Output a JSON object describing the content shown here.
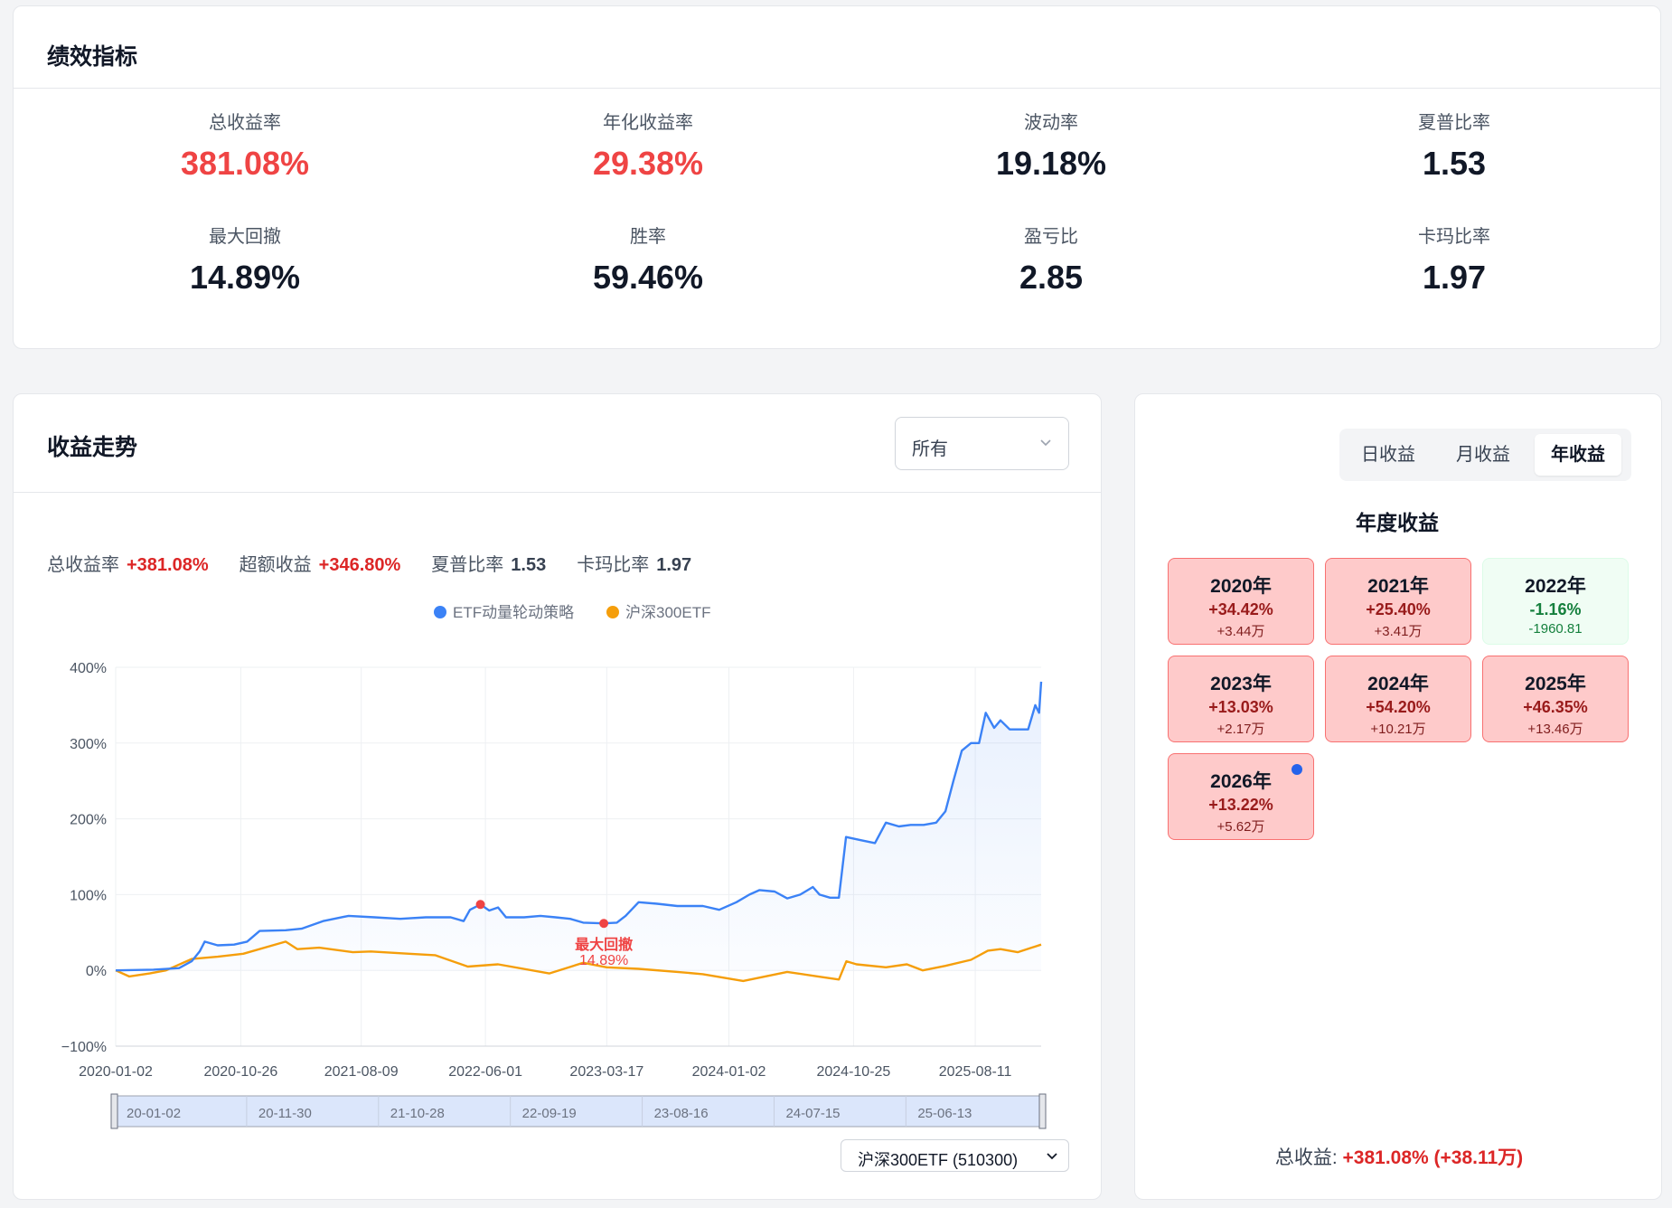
{
  "performance": {
    "title": "绩效指标",
    "metrics": [
      {
        "label": "总收益率",
        "value": "381.08%",
        "highlight": true
      },
      {
        "label": "年化收益率",
        "value": "29.38%",
        "highlight": true
      },
      {
        "label": "波动率",
        "value": "19.18%",
        "highlight": false
      },
      {
        "label": "夏普比率",
        "value": "1.53",
        "highlight": false
      },
      {
        "label": "最大回撤",
        "value": "14.89%",
        "highlight": false
      },
      {
        "label": "胜率",
        "value": "59.46%",
        "highlight": false
      },
      {
        "label": "盈亏比",
        "value": "2.85",
        "highlight": false
      },
      {
        "label": "卡玛比率",
        "value": "1.97",
        "highlight": false
      }
    ]
  },
  "trend": {
    "title": "收益走势",
    "range_select": "所有",
    "stats": [
      {
        "label": "总收益率",
        "value": "+381.08%",
        "color": "red"
      },
      {
        "label": "超额收益",
        "value": "+346.80%",
        "color": "red"
      },
      {
        "label": "夏普比率",
        "value": "1.53",
        "color": "dark"
      },
      {
        "label": "卡玛比率",
        "value": "1.97",
        "color": "dark"
      }
    ],
    "benchmark_select": "沪深300ETF (510300)",
    "dz_labels": [
      "20-01-02",
      "20-11-30",
      "21-10-28",
      "22-09-19",
      "23-08-16",
      "24-07-15",
      "25-06-13"
    ],
    "drawdown_label": "最大回撤",
    "drawdown_value": "14.89%"
  },
  "chart_data": {
    "type": "line",
    "legend_position": "top-center",
    "grid": true,
    "y_ticks": [
      "400%",
      "300%",
      "200%",
      "100%",
      "0%",
      "−100%"
    ],
    "ylim": [
      -100,
      400
    ],
    "x_ticks": [
      "2020-01-02",
      "2020-10-26",
      "2021-08-09",
      "2022-06-01",
      "2023-03-17",
      "2024-01-02",
      "2024-10-25",
      "2025-08-11"
    ],
    "xlim": [
      "2020-01-02",
      "2026-01-15"
    ],
    "series": [
      {
        "name": "ETF动量轮动策略",
        "color": "#3b82f6",
        "area": true,
        "points": [
          [
            "2020-01-02",
            0
          ],
          [
            "2020-04-01",
            1
          ],
          [
            "2020-06-01",
            3
          ],
          [
            "2020-07-01",
            12
          ],
          [
            "2020-07-20",
            25
          ],
          [
            "2020-08-01",
            38
          ],
          [
            "2020-09-01",
            33
          ],
          [
            "2020-10-10",
            34
          ],
          [
            "2020-11-10",
            38
          ],
          [
            "2020-12-10",
            52
          ],
          [
            "2021-02-10",
            53
          ],
          [
            "2021-03-20",
            55
          ],
          [
            "2021-05-10",
            65
          ],
          [
            "2021-07-10",
            72
          ],
          [
            "2021-09-10",
            70
          ],
          [
            "2021-11-10",
            68
          ],
          [
            "2022-01-10",
            70
          ],
          [
            "2022-03-10",
            70
          ],
          [
            "2022-04-10",
            65
          ],
          [
            "2022-04-25",
            80
          ],
          [
            "2022-05-20",
            87
          ],
          [
            "2022-06-10",
            79
          ],
          [
            "2022-07-01",
            83
          ],
          [
            "2022-07-20",
            70
          ],
          [
            "2022-09-01",
            70
          ],
          [
            "2022-10-10",
            72
          ],
          [
            "2022-11-15",
            70
          ],
          [
            "2022-12-20",
            68
          ],
          [
            "2023-01-20",
            63
          ],
          [
            "2023-03-10",
            62
          ],
          [
            "2023-04-10",
            63
          ],
          [
            "2023-05-01",
            72
          ],
          [
            "2023-06-01",
            90
          ],
          [
            "2023-07-15",
            88
          ],
          [
            "2023-09-01",
            85
          ],
          [
            "2023-11-01",
            85
          ],
          [
            "2023-12-10",
            80
          ],
          [
            "2024-01-20",
            90
          ],
          [
            "2024-02-20",
            100
          ],
          [
            "2024-03-15",
            106
          ],
          [
            "2024-04-20",
            104
          ],
          [
            "2024-05-20",
            95
          ],
          [
            "2024-06-20",
            100
          ],
          [
            "2024-07-20",
            110
          ],
          [
            "2024-08-05",
            100
          ],
          [
            "2024-08-30",
            96
          ],
          [
            "2024-09-20",
            96
          ],
          [
            "2024-10-07",
            176
          ],
          [
            "2024-11-10",
            172
          ],
          [
            "2024-12-15",
            168
          ],
          [
            "2025-01-10",
            195
          ],
          [
            "2025-02-10",
            190
          ],
          [
            "2025-03-10",
            192
          ],
          [
            "2025-04-10",
            192
          ],
          [
            "2025-05-10",
            195
          ],
          [
            "2025-06-01",
            210
          ],
          [
            "2025-06-20",
            250
          ],
          [
            "2025-07-10",
            290
          ],
          [
            "2025-08-01",
            300
          ],
          [
            "2025-08-20",
            300
          ],
          [
            "2025-09-05",
            340
          ],
          [
            "2025-09-25",
            320
          ],
          [
            "2025-10-10",
            330
          ],
          [
            "2025-11-01",
            318
          ],
          [
            "2025-11-20",
            318
          ],
          [
            "2025-12-15",
            318
          ],
          [
            "2026-01-01",
            350
          ],
          [
            "2026-01-10",
            340
          ],
          [
            "2026-01-15",
            381
          ]
        ]
      },
      {
        "name": "沪深300ETF",
        "color": "#f59e0b",
        "area": false,
        "points": [
          [
            "2020-01-02",
            0
          ],
          [
            "2020-02-03",
            -8
          ],
          [
            "2020-03-23",
            -4
          ],
          [
            "2020-05-01",
            0
          ],
          [
            "2020-07-01",
            15
          ],
          [
            "2020-09-01",
            18
          ],
          [
            "2020-11-01",
            22
          ],
          [
            "2021-02-10",
            38
          ],
          [
            "2021-03-10",
            28
          ],
          [
            "2021-05-01",
            30
          ],
          [
            "2021-07-20",
            24
          ],
          [
            "2021-09-01",
            25
          ],
          [
            "2021-12-01",
            22
          ],
          [
            "2022-02-01",
            20
          ],
          [
            "2022-04-20",
            5
          ],
          [
            "2022-07-01",
            8
          ],
          [
            "2022-10-31",
            -4
          ],
          [
            "2023-01-20",
            10
          ],
          [
            "2023-03-17",
            4
          ],
          [
            "2023-06-01",
            2
          ],
          [
            "2023-09-01",
            -2
          ],
          [
            "2023-11-01",
            -5
          ],
          [
            "2024-02-05",
            -14
          ],
          [
            "2024-05-20",
            -2
          ],
          [
            "2024-08-01",
            -8
          ],
          [
            "2024-09-20",
            -12
          ],
          [
            "2024-10-08",
            12
          ],
          [
            "2024-11-01",
            8
          ],
          [
            "2025-01-10",
            4
          ],
          [
            "2025-03-01",
            8
          ],
          [
            "2025-04-08",
            0
          ],
          [
            "2025-06-01",
            6
          ],
          [
            "2025-08-01",
            14
          ],
          [
            "2025-09-10",
            26
          ],
          [
            "2025-10-10",
            28
          ],
          [
            "2025-11-20",
            24
          ],
          [
            "2026-01-15",
            34
          ]
        ]
      }
    ],
    "annotations": [
      {
        "type": "peak",
        "x": "2022-05-20",
        "y": 87
      },
      {
        "type": "trough",
        "x": "2023-03-10",
        "y": 62,
        "label": "最大回撤",
        "value": "14.89%"
      }
    ]
  },
  "yearly": {
    "tabs": [
      {
        "label": "日收益",
        "active": false
      },
      {
        "label": "月收益",
        "active": false
      },
      {
        "label": "年收益",
        "active": true
      }
    ],
    "title": "年度收益",
    "years": [
      {
        "year": "2020年",
        "pct": "+34.42%",
        "amount": "+3.44万",
        "positive": true,
        "current": false
      },
      {
        "year": "2021年",
        "pct": "+25.40%",
        "amount": "+3.41万",
        "positive": true,
        "current": false
      },
      {
        "year": "2022年",
        "pct": "-1.16%",
        "amount": "-1960.81",
        "positive": false,
        "current": false
      },
      {
        "year": "2023年",
        "pct": "+13.03%",
        "amount": "+2.17万",
        "positive": true,
        "current": false
      },
      {
        "year": "2024年",
        "pct": "+54.20%",
        "amount": "+10.21万",
        "positive": true,
        "current": false
      },
      {
        "year": "2025年",
        "pct": "+46.35%",
        "amount": "+13.46万",
        "positive": true,
        "current": false
      },
      {
        "year": "2026年",
        "pct": "+13.22%",
        "amount": "+5.62万",
        "positive": true,
        "current": true
      }
    ],
    "total_label": "总收益:",
    "total_value": "+381.08% (+38.11万)"
  }
}
